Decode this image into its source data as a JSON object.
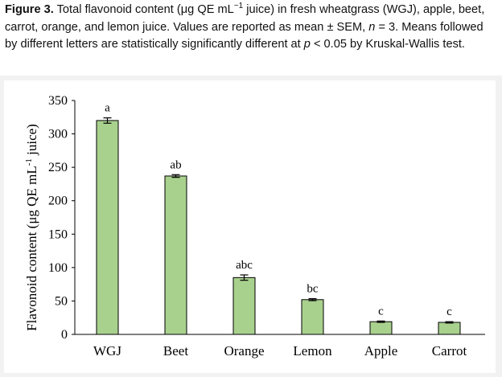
{
  "caption": {
    "label": "Figure 3.",
    "t1": " Total flavonoid content (μg QE mL",
    "sup": "−1",
    "t2": " juice) in fresh wheatgrass (WGJ), apple, beet, carrot, orange, and lemon juice. Values are reported as mean ± SEM, ",
    "n_italic": "n",
    "t3": " = 3. Means followed by different letters are statistically significantly different at ",
    "p_italic": "p",
    "t4": " < 0.05 by Kruskal-Wallis test."
  },
  "chart_data": {
    "type": "bar",
    "ylabel": "Flavonoid content (μg QE mL",
    "ylabel_sup": "-1",
    "ylabel_suffix": " juice)",
    "categories": [
      "WGJ",
      "Beet",
      "Orange",
      "Lemon",
      "Apple",
      "Carrot"
    ],
    "values": [
      320,
      237,
      85,
      52,
      19,
      18
    ],
    "errors": [
      4,
      2,
      4,
      1.5,
      1,
      1
    ],
    "letters": [
      "a",
      "ab",
      "abc",
      "bc",
      "c",
      "c"
    ],
    "ylim": [
      0,
      350
    ],
    "yticks": [
      "0",
      "50",
      "100",
      "150",
      "200",
      "250",
      "300",
      "350"
    ],
    "bar_color": "#a9d18e",
    "bar_edge": "#000000",
    "grid": false
  }
}
